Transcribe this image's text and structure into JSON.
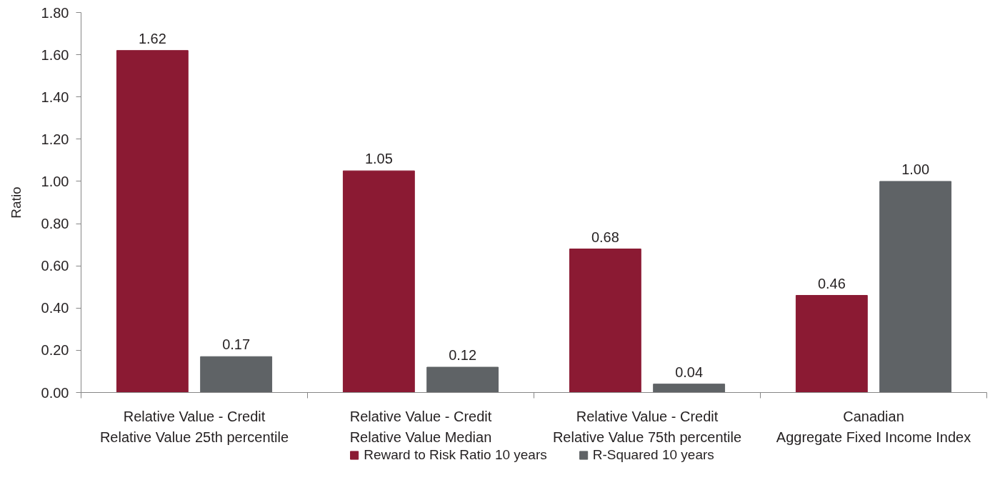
{
  "chart_data": {
    "type": "bar",
    "ylabel": "Ratio",
    "categories": [
      "Relative Value - Credit\nRelative Value 25th percentile",
      "Relative Value - Credit\nRelative Value Median",
      "Relative Value - Credit\nRelative Value 75th percentile",
      "Canadian\nAggregate Fixed Income Index"
    ],
    "series": [
      {
        "name": "Reward to Risk Ratio 10 years",
        "color": "#8b1a33",
        "values": [
          1.62,
          1.05,
          0.68,
          0.46
        ],
        "value_labels": [
          "1.62",
          "1.05",
          "0.68",
          "0.46"
        ]
      },
      {
        "name": "R-Squared 10 years",
        "color": "#5f6366",
        "values": [
          0.17,
          0.12,
          0.04,
          1.0
        ],
        "value_labels": [
          "0.17",
          "0.12",
          "0.04",
          "1.00"
        ]
      }
    ],
    "ylim": [
      0,
      1.8
    ],
    "yticks": [
      {
        "value": 0,
        "label": "0.00"
      },
      {
        "value": 0.2,
        "label": "0.20"
      },
      {
        "value": 0.4,
        "label": "0.40"
      },
      {
        "value": 0.6,
        "label": "0.60"
      },
      {
        "value": 0.8,
        "label": "0.80"
      },
      {
        "value": 1.0,
        "label": "1.00"
      },
      {
        "value": 1.2,
        "label": "1.20"
      },
      {
        "value": 1.4,
        "label": "1.40"
      },
      {
        "value": 1.6,
        "label": "1.60"
      },
      {
        "value": 1.8,
        "label": "1.80"
      }
    ],
    "grid": false,
    "legend": "bottom"
  }
}
